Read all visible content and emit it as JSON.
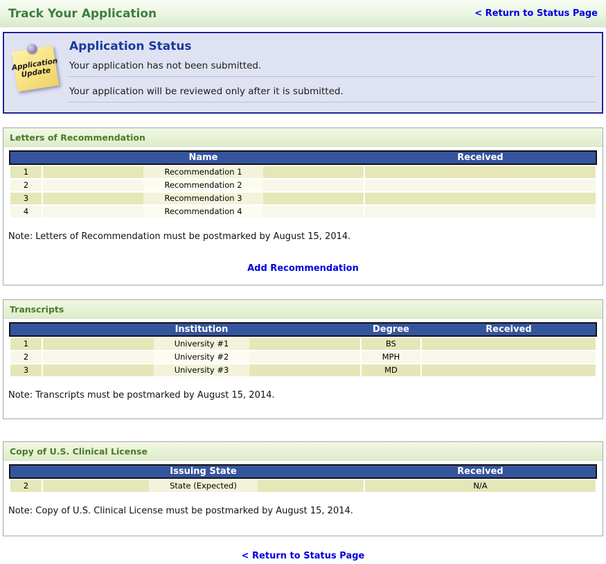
{
  "page": {
    "title": "Track Your Application",
    "return_link_top": "< Return to Status Page",
    "return_link_bottom": "< Return to Status Page"
  },
  "status_panel": {
    "heading": "Application Status",
    "icon_line1": "Application",
    "icon_line2": "Update",
    "messages": [
      "Your application has not been submitted.",
      "Your application will be reviewed only after it is submitted."
    ]
  },
  "letters": {
    "title": "Letters of Recommendation",
    "columns": [
      "Name",
      "Received"
    ],
    "rows": [
      {
        "num": "1",
        "name": "Recommendation 1",
        "received": ""
      },
      {
        "num": "2",
        "name": "Recommendation 2",
        "received": ""
      },
      {
        "num": "3",
        "name": "Recommendation 3",
        "received": ""
      },
      {
        "num": "4",
        "name": "Recommendation 4",
        "received": ""
      }
    ],
    "note": "Note: Letters of Recommendation must be postmarked by August 15, 2014.",
    "action_link": "Add Recommendation"
  },
  "transcripts": {
    "title": "Transcripts",
    "columns": [
      "Institution",
      "Degree",
      "Received"
    ],
    "rows": [
      {
        "num": "1",
        "institution": "University #1",
        "degree": "BS",
        "received": ""
      },
      {
        "num": "2",
        "institution": "University #2",
        "degree": "MPH",
        "received": ""
      },
      {
        "num": "3",
        "institution": "University #3",
        "degree": "MD",
        "received": ""
      }
    ],
    "note": "Note: Transcripts must be postmarked by August 15, 2014."
  },
  "license": {
    "title": "Copy of U.S. Clinical License",
    "columns": [
      "Issuing State",
      "Received"
    ],
    "rows": [
      {
        "num": "2",
        "state": "State (Expected)",
        "received": "N/A"
      }
    ],
    "note": "Note: Copy of U.S. Clinical License must be postmarked by August 15, 2014."
  },
  "colors": {
    "header_blue": "#35549E",
    "link_blue": "#0000E0",
    "title_green": "#3E7E3E",
    "section_green": "#4A7B2A",
    "heading_navy": "#1B3A9C",
    "panel_bg": "#DEE2F3",
    "panel_border": "#20209A",
    "row_odd": "#E6E7B8",
    "row_even": "#F7F8E9",
    "band_odd": "#F3F3DB",
    "band_even": "#FCFCF1",
    "note_yellow": "#FAE483"
  }
}
